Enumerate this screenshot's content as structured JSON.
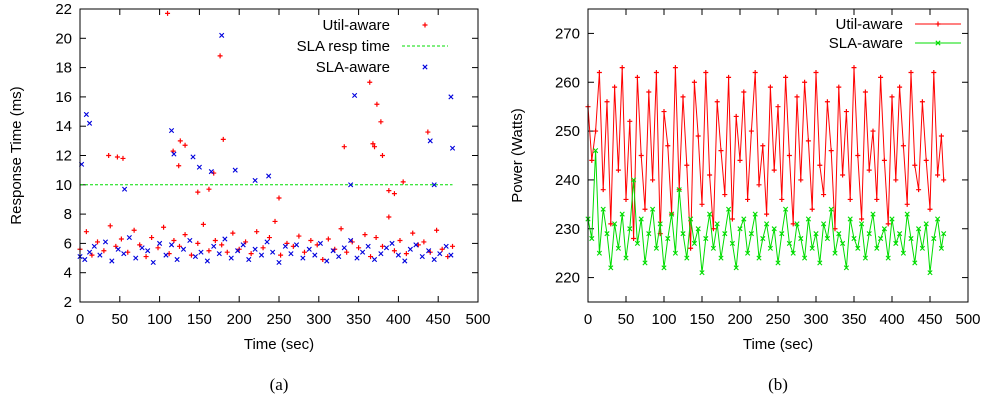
{
  "colors": {
    "util": "#ff0000",
    "sla_resp": "#00dd00",
    "sla": "#0000dd",
    "axis": "#000000"
  },
  "chart_data": [
    {
      "type": "scatter",
      "caption": "(a)",
      "xlabel": "Time (sec)",
      "ylabel": "Response Time (ms)",
      "xlim": [
        0,
        500
      ],
      "ylim": [
        2,
        22
      ],
      "xticks": [
        0,
        50,
        100,
        150,
        200,
        250,
        300,
        350,
        400,
        450,
        500
      ],
      "yticks": [
        2,
        4,
        6,
        8,
        10,
        12,
        14,
        16,
        18,
        20,
        22
      ],
      "legend_position": "top-right",
      "series": [
        {
          "name": "Util-aware",
          "style": "points-plus",
          "color_key": "util",
          "x": [
            0,
            8,
            15,
            22,
            30,
            38,
            45,
            52,
            60,
            68,
            75,
            83,
            90,
            98,
            105,
            112,
            118,
            125,
            132,
            140,
            148,
            155,
            162,
            170,
            178,
            185,
            192,
            200,
            208,
            215,
            222,
            230,
            238,
            245,
            252,
            260,
            268,
            275,
            282,
            290,
            298,
            305,
            312,
            320,
            328,
            335,
            342,
            350,
            358,
            365,
            372,
            380,
            388,
            395,
            402,
            410,
            418,
            425,
            432,
            440,
            448,
            455,
            462,
            468,
            36,
            47,
            54,
            110,
            117,
            124,
            126,
            132,
            148,
            162,
            168,
            176,
            180,
            250,
            332,
            364,
            368,
            370,
            373,
            378,
            380,
            388,
            395,
            406,
            437
          ],
          "y": [
            5.6,
            6.8,
            5.2,
            6.1,
            5.5,
            7.2,
            5.8,
            6.3,
            5.4,
            6.9,
            5.9,
            5.1,
            6.4,
            5.7,
            7.1,
            5.3,
            6.2,
            5.8,
            6.6,
            5.2,
            6.0,
            7.3,
            5.5,
            6.2,
            5.9,
            5.4,
            6.7,
            5.6,
            6.1,
            5.3,
            6.8,
            5.7,
            6.4,
            7.5,
            5.2,
            6.0,
            5.8,
            6.5,
            5.4,
            6.2,
            5.9,
            4.9,
            6.3,
            5.6,
            7.0,
            5.4,
            6.1,
            5.7,
            6.6,
            5.1,
            6.4,
            5.8,
            7.8,
            5.5,
            6.2,
            5.3,
            6.7,
            5.9,
            6.1,
            5.4,
            6.9,
            5.6,
            5.1,
            5.8,
            12.0,
            11.9,
            11.8,
            21.7,
            12.3,
            11.3,
            13.0,
            12.7,
            9.5,
            9.7,
            10.8,
            18.8,
            13.1,
            9.1,
            12.6,
            17.0,
            12.8,
            12.6,
            15.5,
            14.3,
            12.0,
            9.6,
            9.4,
            10.2,
            13.6
          ]
        },
        {
          "name": "SLA resp time",
          "style": "dashed-line",
          "color_key": "sla_resp",
          "x": [
            0,
            468
          ],
          "y": [
            10,
            10
          ]
        },
        {
          "name": "SLA-aware",
          "style": "points-x",
          "color_key": "sla",
          "x": [
            0,
            6,
            12,
            18,
            25,
            32,
            40,
            48,
            55,
            62,
            70,
            78,
            85,
            92,
            100,
            108,
            115,
            122,
            130,
            138,
            145,
            152,
            160,
            168,
            175,
            182,
            190,
            198,
            205,
            212,
            220,
            228,
            235,
            242,
            250,
            258,
            265,
            272,
            280,
            288,
            295,
            302,
            310,
            318,
            325,
            332,
            340,
            348,
            355,
            362,
            370,
            378,
            385,
            392,
            400,
            408,
            415,
            422,
            430,
            438,
            445,
            452,
            460,
            466,
            2,
            8,
            12,
            56,
            115,
            118,
            142,
            150,
            165,
            178,
            195,
            220,
            237,
            340,
            345,
            440,
            445,
            466,
            468
          ],
          "y": [
            5.1,
            4.9,
            5.4,
            5.8,
            5.2,
            6.1,
            4.8,
            5.6,
            5.3,
            6.4,
            5.0,
            5.7,
            5.5,
            4.7,
            6.0,
            5.2,
            5.9,
            4.9,
            5.6,
            6.2,
            5.1,
            5.4,
            4.8,
            5.8,
            5.3,
            6.3,
            5.0,
            5.5,
            5.9,
            4.9,
            5.6,
            5.2,
            6.1,
            5.4,
            4.7,
            5.8,
            5.3,
            5.9,
            5.0,
            5.6,
            5.2,
            6.0,
            4.8,
            5.5,
            5.1,
            5.7,
            6.2,
            5.0,
            5.4,
            5.8,
            4.9,
            5.3,
            5.7,
            6.0,
            5.2,
            4.8,
            5.6,
            5.9,
            5.1,
            5.5,
            4.9,
            5.3,
            5.8,
            5.2,
            11.4,
            14.8,
            14.2,
            9.7,
            13.7,
            12.1,
            11.9,
            11.2,
            10.9,
            20.2,
            11.0,
            10.3,
            10.6,
            10.0,
            16.1,
            13.0,
            10.0,
            16.0,
            12.5
          ]
        }
      ]
    },
    {
      "type": "line",
      "caption": "(b)",
      "xlabel": "Time (sec)",
      "ylabel": "Power (Watts)",
      "xlim": [
        0,
        500
      ],
      "ylim": [
        215,
        275
      ],
      "xticks": [
        0,
        50,
        100,
        150,
        200,
        250,
        300,
        350,
        400,
        450,
        500
      ],
      "yticks": [
        220,
        230,
        240,
        250,
        260,
        270
      ],
      "legend_position": "top-right",
      "series": [
        {
          "name": "Util-aware",
          "style": "line-plus",
          "color_key": "util",
          "x": [
            0,
            5,
            10,
            15,
            20,
            25,
            30,
            35,
            40,
            45,
            50,
            55,
            60,
            65,
            70,
            75,
            80,
            85,
            90,
            95,
            100,
            105,
            110,
            115,
            120,
            125,
            130,
            135,
            140,
            145,
            150,
            155,
            160,
            165,
            170,
            175,
            180,
            185,
            190,
            195,
            200,
            205,
            210,
            215,
            220,
            225,
            230,
            235,
            240,
            245,
            250,
            255,
            260,
            265,
            270,
            275,
            280,
            285,
            290,
            295,
            300,
            305,
            310,
            315,
            320,
            325,
            330,
            335,
            340,
            345,
            350,
            355,
            360,
            365,
            370,
            375,
            380,
            385,
            390,
            395,
            400,
            405,
            410,
            415,
            420,
            425,
            430,
            435,
            440,
            445,
            450,
            455,
            460,
            465,
            468
          ],
          "y": [
            255,
            244,
            250,
            262,
            238,
            256,
            231,
            259,
            242,
            263,
            236,
            252,
            228,
            261,
            245,
            234,
            258,
            240,
            262,
            229,
            254,
            247,
            233,
            263,
            238,
            257,
            243,
            226,
            260,
            249,
            235,
            262,
            241,
            230,
            256,
            246,
            237,
            261,
            232,
            253,
            244,
            258,
            236,
            250,
            262,
            239,
            247,
            233,
            259,
            242,
            255,
            236,
            261,
            245,
            231,
            257,
            240,
            260,
            248,
            234,
            262,
            243,
            237,
            256,
            246,
            230,
            259,
            241,
            254,
            236,
            263,
            245,
            232,
            258,
            242,
            250,
            236,
            261,
            244,
            231,
            257,
            240,
            259,
            247,
            235,
            262,
            243,
            238,
            256,
            244,
            234,
            262,
            241,
            249,
            240
          ]
        },
        {
          "name": "SLA-aware",
          "style": "line-x",
          "color_key": "sla_resp",
          "x": [
            0,
            5,
            10,
            15,
            20,
            25,
            30,
            35,
            40,
            45,
            50,
            55,
            60,
            65,
            70,
            75,
            80,
            85,
            90,
            95,
            100,
            105,
            110,
            115,
            120,
            125,
            130,
            135,
            140,
            145,
            150,
            155,
            160,
            165,
            170,
            175,
            180,
            185,
            190,
            195,
            200,
            205,
            210,
            215,
            220,
            225,
            230,
            235,
            240,
            245,
            250,
            255,
            260,
            265,
            270,
            275,
            280,
            285,
            290,
            295,
            300,
            305,
            310,
            315,
            320,
            325,
            330,
            335,
            340,
            345,
            350,
            355,
            360,
            365,
            370,
            375,
            380,
            385,
            390,
            395,
            400,
            405,
            410,
            415,
            420,
            425,
            430,
            435,
            440,
            445,
            450,
            455,
            460,
            465,
            468
          ],
          "y": [
            232,
            228,
            246,
            225,
            234,
            229,
            222,
            231,
            226,
            233,
            224,
            230,
            240,
            227,
            232,
            223,
            229,
            234,
            226,
            231,
            222,
            228,
            233,
            225,
            238,
            229,
            224,
            232,
            227,
            230,
            221,
            228,
            233,
            226,
            231,
            224,
            229,
            234,
            227,
            222,
            230,
            232,
            225,
            229,
            233,
            224,
            228,
            231,
            226,
            230,
            223,
            229,
            234,
            227,
            225,
            231,
            228,
            224,
            232,
            226,
            229,
            223,
            231,
            228,
            234,
            225,
            229,
            227,
            222,
            232,
            228,
            226,
            231,
            224,
            229,
            233,
            226,
            228,
            230,
            224,
            232,
            227,
            229,
            225,
            233,
            228,
            223,
            230,
            226,
            231,
            221,
            228,
            232,
            226,
            229
          ]
        }
      ]
    }
  ]
}
